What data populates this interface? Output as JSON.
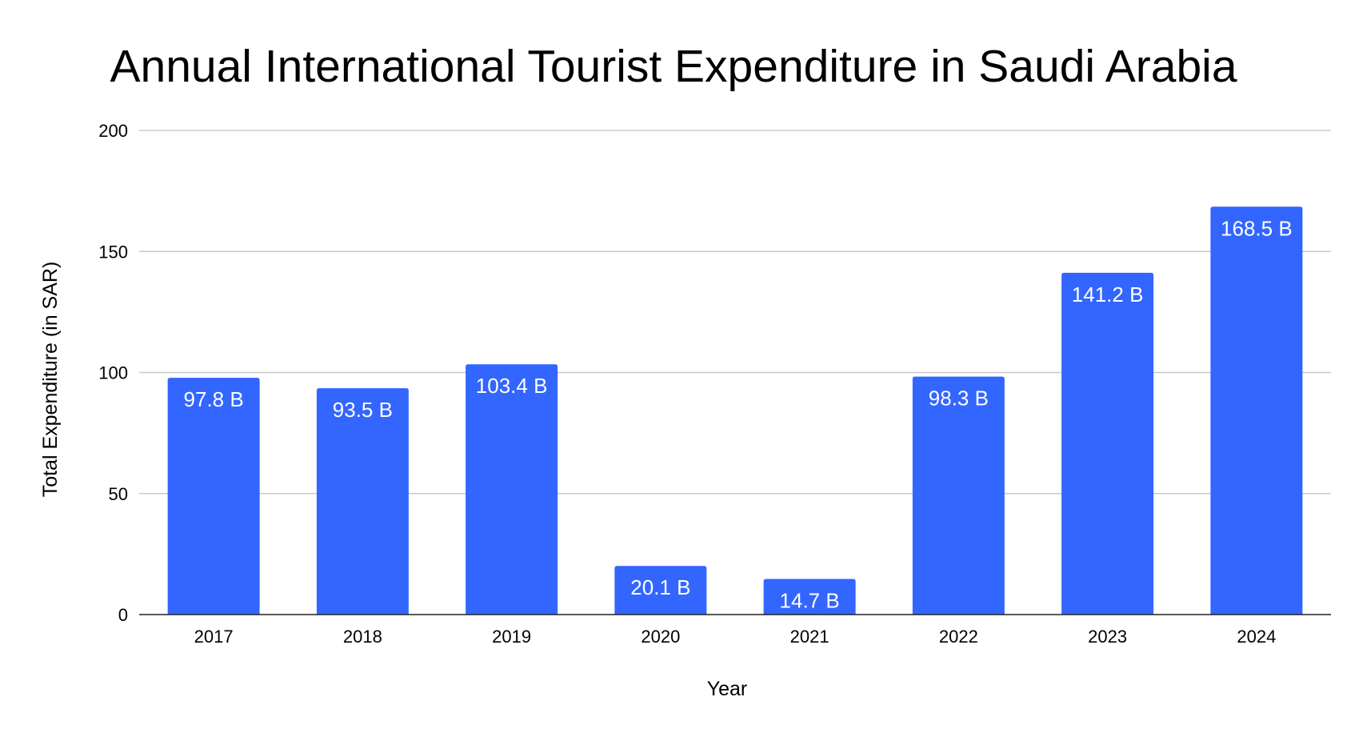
{
  "chart_data": {
    "type": "bar",
    "title": "Annual International Tourist Expenditure in Saudi Arabia",
    "xlabel": "Year",
    "ylabel": "Total Expenditure (in SAR)",
    "categories": [
      "2017",
      "2018",
      "2019",
      "2020",
      "2021",
      "2022",
      "2023",
      "2024"
    ],
    "values": [
      97.8,
      93.5,
      103.4,
      20.1,
      14.7,
      98.3,
      141.2,
      168.5
    ],
    "data_labels": [
      "97.8 B",
      "93.5 B",
      "103.4 B",
      "20.1 B",
      "14.7 B",
      "98.3 B",
      "141.2 B",
      "168.5 B"
    ],
    "ylim": [
      0,
      200
    ],
    "yticks": [
      0,
      50,
      100,
      150,
      200
    ],
    "ytick_labels": [
      "0",
      "50",
      "100",
      "150",
      "200"
    ],
    "grid": true,
    "legend": "none",
    "bar_color": "#3366ff",
    "gridline_color": "#c8c8c8",
    "baseline_color": "#222222",
    "data_label_color": "#ffffff"
  }
}
